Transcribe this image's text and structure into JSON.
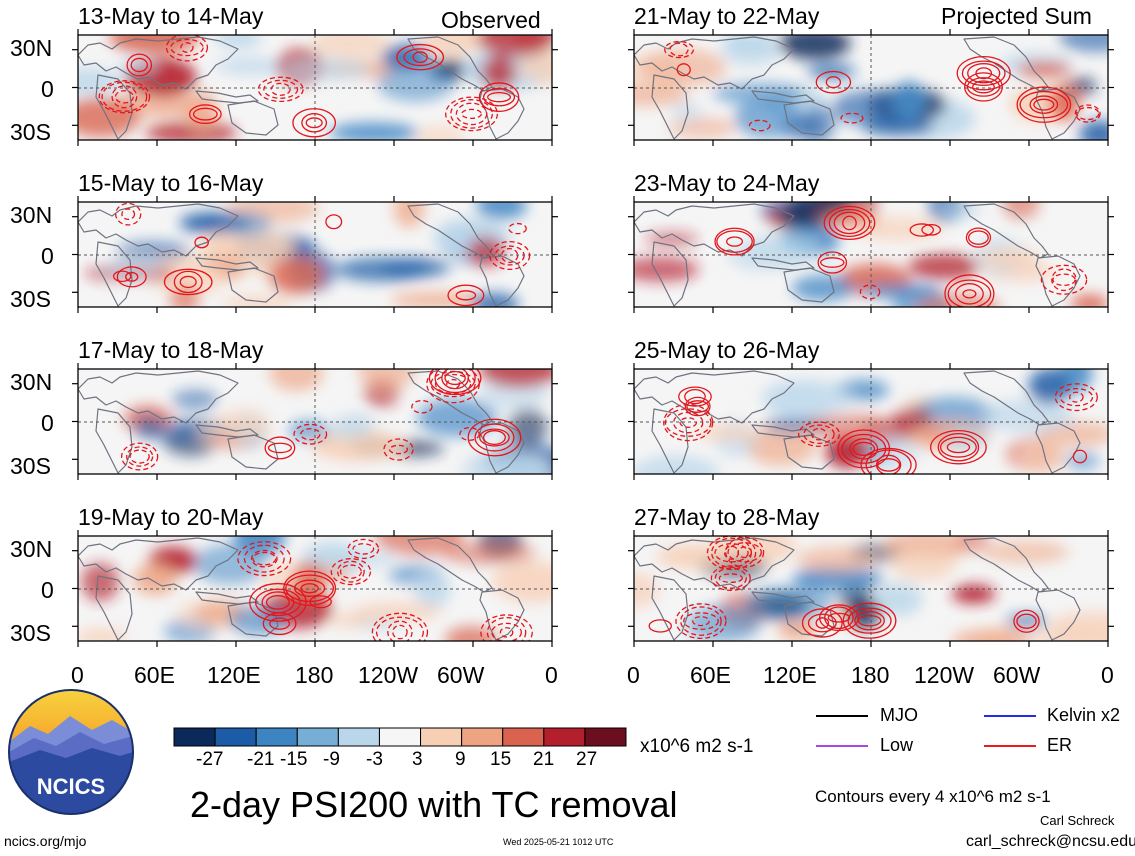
{
  "columns": [
    {
      "label": "Observed",
      "panels": [
        "13-May to 14-May",
        "15-May to 16-May",
        "17-May to 18-May",
        "19-May to 20-May"
      ]
    },
    {
      "label": "Projected Sum",
      "panels": [
        "21-May to 22-May",
        "23-May to 24-May",
        "25-May to 26-May",
        "27-May to 28-May"
      ]
    }
  ],
  "y_ticks": [
    "30N",
    "0",
    "30S"
  ],
  "x_ticks": [
    "0",
    "60E",
    "120E",
    "180",
    "120W",
    "60W",
    "0"
  ],
  "colorbar": {
    "ticks": [
      "-27",
      "-21",
      "-15",
      "-9",
      "-3",
      "3",
      "9",
      "15",
      "21",
      "27"
    ],
    "colors": [
      "#0b2a5a",
      "#1c5ba6",
      "#3d84c3",
      "#77aed6",
      "#b9d6ea",
      "#f6f6f6",
      "#f7cfb5",
      "#eea483",
      "#d9634f",
      "#b41f2d",
      "#6b0f1e"
    ],
    "units": "x10^6 m2 s-1"
  },
  "logo": {
    "text": "NCICS"
  },
  "main_title": "2-day PSI200 with TC removal",
  "legend": [
    {
      "label": "MJO",
      "color": "#000000"
    },
    {
      "label": "Kelvin x2",
      "color": "#1f2fe0"
    },
    {
      "label": "Low",
      "color": "#a64ae3"
    },
    {
      "label": "ER",
      "color": "#ea1c1c"
    }
  ],
  "contour_note": "Contours every 4 x10^6 m2 s-1",
  "author": "Carl Schreck",
  "email": "carl_schreck@ncsu.edu",
  "url": "ncics.org/mjo",
  "timestamp": "Wed 2025-05-21 1012 UTC"
}
